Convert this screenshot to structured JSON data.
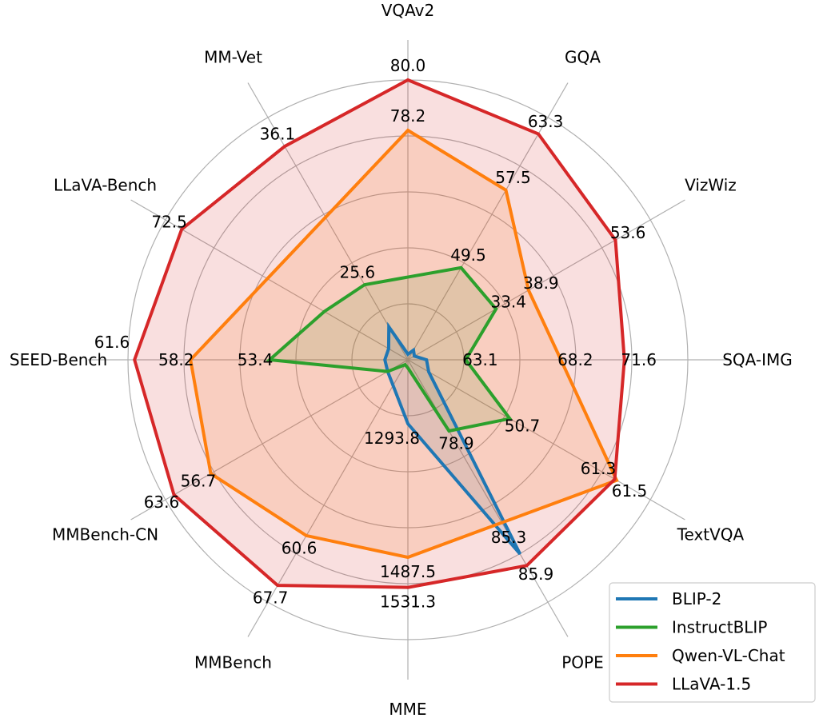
{
  "chart_data": {
    "type": "radar",
    "title": "",
    "grid": true,
    "legend_placement": "lower-right",
    "axes": [
      "VQAv2",
      "GQA",
      "VizWiz",
      "SQA-IMG",
      "TextVQA",
      "POPE",
      "MME",
      "MMBench",
      "MMBench-CN",
      "SEED-Bench",
      "LLaVA-Bench",
      "MM-Vet"
    ],
    "axis_ranges": [
      [
        70,
        80
      ],
      [
        40,
        65
      ],
      [
        18.5,
        59.5
      ],
      [
        60,
        75
      ],
      [
        40.4,
        64.9
      ],
      [
        75.2,
        87.8
      ],
      [
        1201,
        1607
      ],
      [
        35.5,
        70.1
      ],
      [
        19.7,
        65.2
      ],
      [
        45,
        62
      ],
      [
        34.9,
        75.2
      ],
      [
        19.9,
        38.3
      ]
    ],
    "series": [
      {
        "name": "BLIP-2",
        "color": "#1f77b4",
        "values": [
          41.0,
          41.0,
          19.6,
          61.0,
          42.5,
          85.3,
          1293.8,
          null,
          23.5,
          46.4,
          38.1,
          22.4
        ],
        "labeled": [
          false,
          false,
          false,
          false,
          false,
          true,
          true,
          false,
          false,
          false,
          false,
          false
        ]
      },
      {
        "name": "InstructBLIP",
        "color": "#2ca02c",
        "values": [
          null,
          49.5,
          33.4,
          63.1,
          50.7,
          78.9,
          1212.8,
          36.0,
          23.5,
          53.4,
          48.8,
          25.6
        ],
        "labeled": [
          false,
          true,
          true,
          true,
          true,
          true,
          false,
          false,
          false,
          true,
          false,
          true
        ]
      },
      {
        "name": "Qwen-VL-Chat",
        "color": "#ff7f0e",
        "values": [
          78.2,
          57.5,
          38.9,
          68.2,
          61.5,
          null,
          1487.5,
          60.6,
          56.7,
          58.2,
          null,
          null
        ],
        "labeled": [
          true,
          true,
          true,
          true,
          true,
          false,
          true,
          true,
          true,
          true,
          false,
          false
        ]
      },
      {
        "name": "LLaVA-1.5",
        "color": "#d62728",
        "values": [
          80.0,
          63.3,
          53.6,
          71.6,
          61.3,
          85.9,
          1531.3,
          67.7,
          63.6,
          61.6,
          72.5,
          36.1
        ],
        "labeled": [
          true,
          true,
          true,
          true,
          true,
          true,
          true,
          true,
          true,
          true,
          true,
          true
        ]
      }
    ],
    "value_labels": {
      "BLIP-2": [
        "",
        "",
        "",
        "",
        "",
        "85.3",
        "1293.8",
        "",
        "",
        "",
        "",
        ""
      ],
      "InstructBLIP": [
        "",
        "49.5",
        "33.4",
        "63.1",
        "50.7",
        "78.9",
        "",
        "",
        "",
        "53.4",
        "",
        "25.6"
      ],
      "Qwen-VL-Chat": [
        "78.2",
        "57.5",
        "38.9",
        "68.2",
        "61.5",
        "",
        "1487.5",
        "60.6",
        "56.7",
        "58.2",
        "",
        ""
      ],
      "LLaVA-1.5": [
        "80.0",
        "63.3",
        "53.6",
        "71.6",
        "61.3",
        "85.9",
        "1531.3",
        "67.7",
        "63.6",
        "61.6",
        "72.5",
        "36.1"
      ]
    }
  }
}
